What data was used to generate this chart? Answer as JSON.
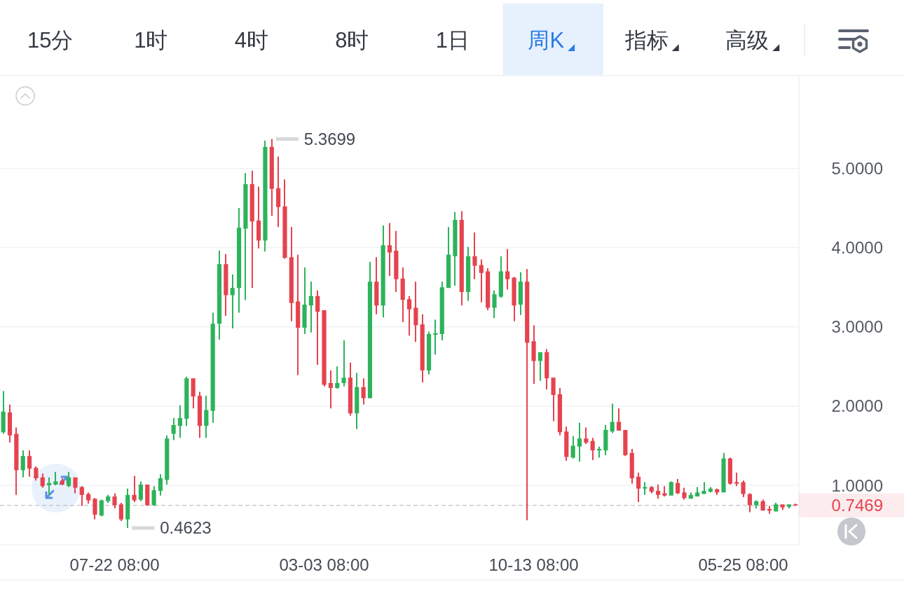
{
  "chart_data": {
    "type": "candlestick",
    "categories": [
      null,
      null,
      null,
      null,
      null,
      null,
      null,
      null,
      null,
      null,
      null,
      null,
      null,
      null,
      null,
      null,
      null,
      "07-22 08:00",
      null,
      null,
      null,
      null,
      null,
      null,
      null,
      null,
      null,
      null,
      null,
      null,
      null,
      null,
      null,
      null,
      null,
      null,
      null,
      null,
      null,
      null,
      null,
      null,
      null,
      null,
      null,
      null,
      null,
      null,
      null,
      "03-03 08:00",
      null,
      null,
      null,
      null,
      null,
      null,
      null,
      null,
      null,
      null,
      null,
      null,
      null,
      null,
      null,
      null,
      null,
      null,
      null,
      null,
      null,
      null,
      null,
      null,
      null,
      null,
      null,
      null,
      null,
      null,
      null,
      "10-13 08:00",
      null,
      null,
      null,
      null,
      null,
      null,
      null,
      null,
      null,
      null,
      null,
      null,
      null,
      null,
      null,
      null,
      null,
      null,
      null,
      null,
      null,
      null,
      null,
      null,
      null,
      null,
      null,
      null,
      null,
      null,
      null,
      "05-25 08:00",
      null,
      null,
      null,
      null,
      null,
      null,
      null,
      null
    ],
    "ohlc": [
      [
        1.67,
        2.19,
        1.65,
        1.93
      ],
      [
        1.92,
        2.02,
        1.54,
        1.63
      ],
      [
        1.65,
        1.73,
        0.88,
        1.19
      ],
      [
        1.19,
        1.44,
        1.1,
        1.37
      ],
      [
        1.37,
        1.44,
        1.11,
        1.21
      ],
      [
        1.22,
        1.24,
        1.06,
        1.09
      ],
      [
        1.1,
        1.15,
        0.97,
        0.99
      ],
      [
        1.0,
        1.1,
        0.88,
        1.03
      ],
      [
        1.01,
        1.17,
        1.0,
        1.05
      ],
      [
        1.06,
        1.09,
        1.0,
        1.01
      ],
      [
        0.99,
        1.17,
        0.98,
        1.1
      ],
      [
        1.1,
        1.1,
        0.9,
        0.97
      ],
      [
        0.98,
        0.99,
        0.74,
        0.88
      ],
      [
        0.89,
        0.91,
        0.77,
        0.81
      ],
      [
        0.83,
        0.84,
        0.57,
        0.63
      ],
      [
        0.62,
        0.82,
        0.61,
        0.81
      ],
      [
        0.8,
        0.88,
        0.78,
        0.86
      ],
      [
        0.86,
        0.9,
        0.71,
        0.75
      ],
      [
        0.76,
        0.78,
        0.55,
        0.57
      ],
      [
        0.57,
        0.96,
        0.4623,
        0.88
      ],
      [
        0.88,
        1.12,
        0.79,
        0.81
      ],
      [
        0.82,
        1.05,
        0.8,
        1.01
      ],
      [
        1.01,
        1.01,
        0.74,
        0.75
      ],
      [
        0.75,
        0.99,
        0.74,
        0.94
      ],
      [
        0.93,
        1.14,
        0.87,
        1.09
      ],
      [
        1.07,
        1.63,
        1.01,
        1.59
      ],
      [
        1.65,
        1.85,
        1.57,
        1.76
      ],
      [
        1.75,
        2.01,
        1.6,
        1.85
      ],
      [
        1.84,
        2.37,
        1.75,
        2.35
      ],
      [
        2.35,
        2.35,
        1.97,
        2.12
      ],
      [
        2.13,
        2.18,
        1.6,
        1.75
      ],
      [
        1.75,
        2.13,
        1.6,
        1.95
      ],
      [
        1.94,
        3.18,
        1.79,
        3.04
      ],
      [
        3.04,
        3.96,
        2.84,
        3.79
      ],
      [
        3.79,
        3.92,
        3.14,
        3.4
      ],
      [
        3.4,
        3.66,
        2.98,
        3.49
      ],
      [
        3.49,
        4.5,
        3.18,
        4.25
      ],
      [
        4.24,
        4.94,
        3.34,
        4.8
      ],
      [
        4.8,
        4.97,
        3.49,
        4.33
      ],
      [
        4.34,
        4.77,
        3.99,
        4.09
      ],
      [
        4.09,
        5.35,
        3.95,
        5.27
      ],
      [
        5.27,
        5.3699,
        4.4,
        4.74
      ],
      [
        4.75,
        5.15,
        4.26,
        4.51
      ],
      [
        4.52,
        4.86,
        3.86,
        3.87
      ],
      [
        3.88,
        4.26,
        3.07,
        3.3
      ],
      [
        3.32,
        3.91,
        2.39,
        2.99
      ],
      [
        2.99,
        3.75,
        2.91,
        3.28
      ],
      [
        3.27,
        3.57,
        2.93,
        3.39
      ],
      [
        3.39,
        3.46,
        2.52,
        3.19
      ],
      [
        3.21,
        3.21,
        2.25,
        2.27
      ],
      [
        2.29,
        2.45,
        1.97,
        2.23
      ],
      [
        2.23,
        2.5,
        2.22,
        2.29
      ],
      [
        2.29,
        2.83,
        2.25,
        2.36
      ],
      [
        2.36,
        2.55,
        1.88,
        1.91
      ],
      [
        1.91,
        2.42,
        1.71,
        2.24
      ],
      [
        2.24,
        2.35,
        2.02,
        2.1
      ],
      [
        2.1,
        3.82,
        2.1,
        3.57
      ],
      [
        3.57,
        3.88,
        3.16,
        3.27
      ],
      [
        3.27,
        4.28,
        3.12,
        4.03
      ],
      [
        4.03,
        4.31,
        3.64,
        3.94
      ],
      [
        3.96,
        4.21,
        3.44,
        3.6
      ],
      [
        3.61,
        3.75,
        3.06,
        3.34
      ],
      [
        3.35,
        3.39,
        2.89,
        3.22
      ],
      [
        3.24,
        3.57,
        2.81,
        3.02
      ],
      [
        3.03,
        3.16,
        2.3,
        2.45
      ],
      [
        2.45,
        2.94,
        2.4,
        2.91
      ],
      [
        2.9,
        3.09,
        2.65,
        2.92
      ],
      [
        2.91,
        3.57,
        2.83,
        3.5
      ],
      [
        3.49,
        4.26,
        3.49,
        3.91
      ],
      [
        3.89,
        4.45,
        3.52,
        4.35
      ],
      [
        4.35,
        4.46,
        3.27,
        3.44
      ],
      [
        3.44,
        4.01,
        3.33,
        3.89
      ],
      [
        3.89,
        4.19,
        3.6,
        3.77
      ],
      [
        3.78,
        3.85,
        3.31,
        3.68
      ],
      [
        3.7,
        3.74,
        3.21,
        3.24
      ],
      [
        3.24,
        3.46,
        3.11,
        3.41
      ],
      [
        3.38,
        3.89,
        3.37,
        3.7
      ],
      [
        3.7,
        3.98,
        3.47,
        3.6
      ],
      [
        3.62,
        3.63,
        3.07,
        3.27
      ],
      [
        3.28,
        3.69,
        3.15,
        3.57
      ],
      [
        3.57,
        3.73,
        0.56,
        2.8
      ],
      [
        2.82,
        3.02,
        2.28,
        2.57
      ],
      [
        2.57,
        2.68,
        2.32,
        2.68
      ],
      [
        2.68,
        2.72,
        2.21,
        2.35
      ],
      [
        2.36,
        2.36,
        1.81,
        2.14
      ],
      [
        2.15,
        2.23,
        1.63,
        1.67
      ],
      [
        1.68,
        1.74,
        1.31,
        1.36
      ],
      [
        1.35,
        1.62,
        1.34,
        1.5
      ],
      [
        1.49,
        1.79,
        1.3,
        1.59
      ],
      [
        1.59,
        1.73,
        1.52,
        1.54
      ],
      [
        1.56,
        1.6,
        1.32,
        1.44
      ],
      [
        1.44,
        1.49,
        1.35,
        1.46
      ],
      [
        1.44,
        1.76,
        1.38,
        1.7
      ],
      [
        1.68,
        2.03,
        1.66,
        1.8
      ],
      [
        1.8,
        1.97,
        1.69,
        1.69
      ],
      [
        1.7,
        1.7,
        1.37,
        1.38
      ],
      [
        1.41,
        1.46,
        1.02,
        1.09
      ],
      [
        1.11,
        1.16,
        0.79,
        0.96
      ],
      [
        0.96,
        1.04,
        0.88,
        0.98
      ],
      [
        0.98,
        0.99,
        0.9,
        0.92
      ],
      [
        0.93,
        1.01,
        0.83,
        0.88
      ],
      [
        0.9,
        0.99,
        0.86,
        0.87
      ],
      [
        0.87,
        1.05,
        0.87,
        1.04
      ],
      [
        1.03,
        1.08,
        0.89,
        0.9
      ],
      [
        0.91,
        0.97,
        0.82,
        0.84
      ],
      [
        0.83,
        0.91,
        0.83,
        0.88
      ],
      [
        0.86,
        0.98,
        0.86,
        0.91
      ],
      [
        0.89,
        1.04,
        0.89,
        0.93
      ],
      [
        0.92,
        0.98,
        0.91,
        0.96
      ],
      [
        0.95,
        0.96,
        0.88,
        0.91
      ],
      [
        0.91,
        1.41,
        0.91,
        1.34
      ],
      [
        1.34,
        1.35,
        1.01,
        1.02
      ],
      [
        1.04,
        1.16,
        0.99,
        1.02
      ],
      [
        1.04,
        1.06,
        0.85,
        0.89
      ],
      [
        0.89,
        0.9,
        0.66,
        0.75
      ],
      [
        0.75,
        0.81,
        0.71,
        0.8
      ],
      [
        0.8,
        0.82,
        0.68,
        0.68
      ],
      [
        0.7,
        0.74,
        0.64,
        0.68
      ],
      [
        0.67,
        0.78,
        0.67,
        0.76
      ],
      [
        0.76,
        0.76,
        0.69,
        0.72
      ],
      [
        0.73,
        0.76,
        0.71,
        0.76
      ],
      [
        0.76,
        0.77,
        0.74,
        0.7469
      ]
    ],
    "colors": [
      "#2db35b",
      "#e5434f",
      "#e5434f",
      "#2db35b",
      "#e5434f",
      "#e5434f",
      "#e5434f",
      "#2db35b",
      "#2db35b",
      "#e5434f",
      "#2db35b",
      "#e5434f",
      "#e5434f",
      "#e5434f",
      "#e5434f",
      "#2db35b",
      "#2db35b",
      "#e5434f",
      "#e5434f",
      "#2db35b",
      "#e5434f",
      "#2db35b",
      "#e5434f",
      "#2db35b",
      "#2db35b",
      "#2db35b",
      "#2db35b",
      "#2db35b",
      "#2db35b",
      "#e5434f",
      "#e5434f",
      "#2db35b",
      "#2db35b",
      "#2db35b",
      "#e5434f",
      "#2db35b",
      "#2db35b",
      "#2db35b",
      "#e5434f",
      "#e5434f",
      "#2db35b",
      "#e5434f",
      "#e5434f",
      "#e5434f",
      "#e5434f",
      "#e5434f",
      "#2db35b",
      "#2db35b",
      "#e5434f",
      "#e5434f",
      "#e5434f",
      "#2db35b",
      "#2db35b",
      "#e5434f",
      "#2db35b",
      "#e5434f",
      "#2db35b",
      "#e5434f",
      "#2db35b",
      "#e5434f",
      "#e5434f",
      "#e5434f",
      "#e5434f",
      "#e5434f",
      "#e5434f",
      "#2db35b",
      "#2db35b",
      "#2db35b",
      "#2db35b",
      "#2db35b",
      "#e5434f",
      "#2db35b",
      "#e5434f",
      "#e5434f",
      "#e5434f",
      "#2db35b",
      "#2db35b",
      "#e5434f",
      "#e5434f",
      "#2db35b",
      "#e5434f",
      "#e5434f",
      "#2db35b",
      "#e5434f",
      "#e5434f",
      "#e5434f",
      "#e5434f",
      "#2db35b",
      "#2db35b",
      "#e5434f",
      "#e5434f",
      "#2db35b",
      "#2db35b",
      "#2db35b",
      "#e5434f",
      "#e5434f",
      "#e5434f",
      "#e5434f",
      "#2db35b",
      "#e5434f",
      "#e5434f",
      "#e5434f",
      "#2db35b",
      "#e5434f",
      "#e5434f",
      "#2db35b",
      "#2db35b",
      "#2db35b",
      "#2db35b",
      "#e5434f",
      "#2db35b",
      "#e5434f",
      "#e5434f",
      "#e5434f",
      "#e5434f",
      "#2db35b",
      "#e5434f",
      "#e5434f",
      "#2db35b",
      "#e5434f",
      "#2db35b",
      "#e5434f"
    ],
    "ylim": [
      0.25,
      6.17
    ],
    "yticks": [
      {
        "value": 1,
        "label": "1.0000"
      },
      {
        "value": 2,
        "label": "2.0000"
      },
      {
        "value": 3,
        "label": "3.0000"
      },
      {
        "value": 4,
        "label": "4.0000"
      },
      {
        "value": 5,
        "label": "5.0000"
      }
    ],
    "grid": "y",
    "ref_lines": [
      {
        "axis": "y",
        "value": 0.7469,
        "label": "0.7469",
        "color": "#b4b4b4",
        "line_style": "dashed"
      }
    ],
    "annotations": [
      "15分",
      "1时",
      "4时",
      "8时",
      "1日",
      "周K",
      "指标",
      "高级",
      "5.3699",
      "0.4623"
    ]
  }
}
